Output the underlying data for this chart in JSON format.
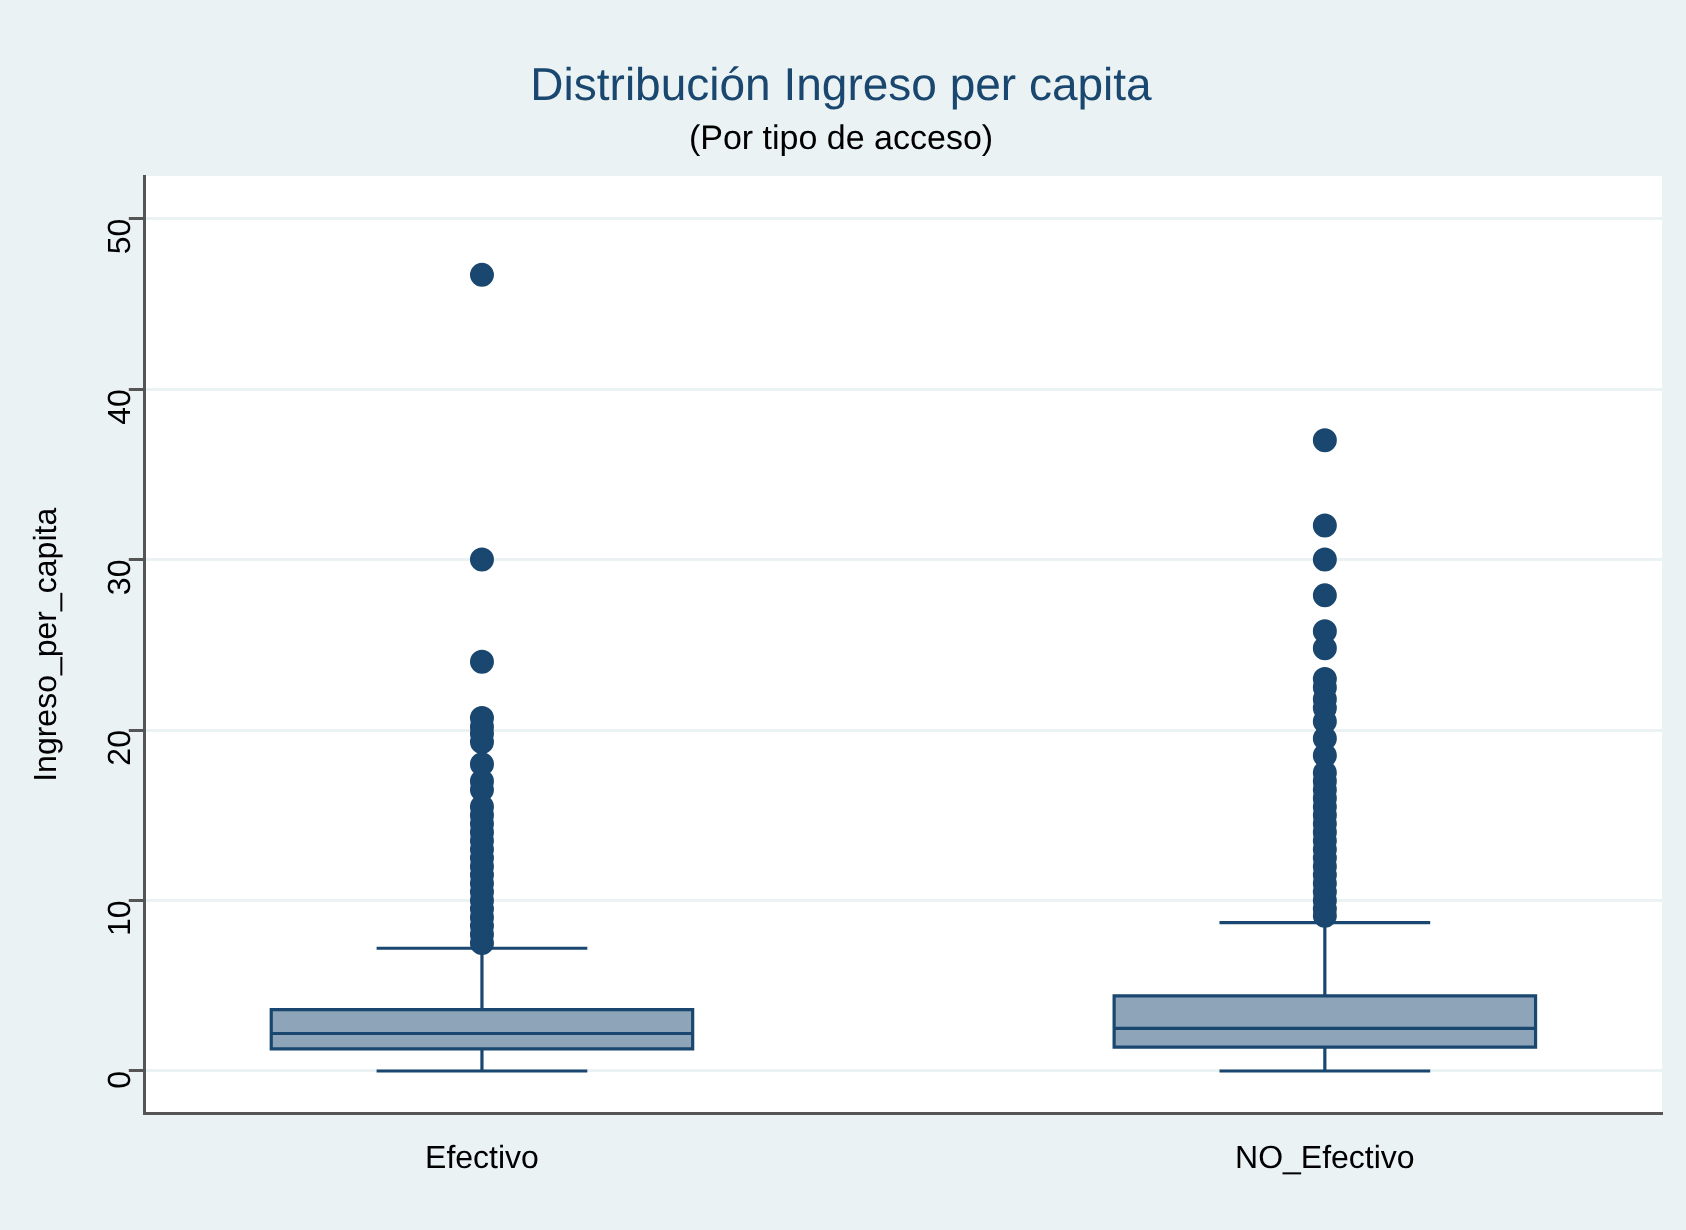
{
  "chart_data": {
    "type": "box",
    "title": "Distribución Ingreso per capita",
    "subtitle": "(Por tipo de acceso)",
    "ylabel": "Ingreso_per_capita",
    "categories": [
      "Efectivo",
      "NO_Efectivo"
    ],
    "ylim": [
      -2.5,
      52.5
    ],
    "yticks": [
      0,
      10,
      20,
      30,
      40,
      50
    ],
    "grid": "y",
    "color": "#1a476f",
    "boxes": [
      {
        "low": 0,
        "q1": 1.3,
        "median": 2.2,
        "q3": 3.6,
        "high": 7.2,
        "outliers": [
          46.7,
          30,
          24,
          20.7,
          20.2,
          19.8,
          19.3,
          18,
          17,
          16.5,
          15.5,
          15,
          14.5,
          14,
          13.5,
          13,
          12.5,
          12,
          11.5,
          11,
          10.5,
          10,
          9.5,
          9,
          8.5,
          8,
          7.5
        ]
      },
      {
        "low": 0,
        "q1": 1.4,
        "median": 2.5,
        "q3": 4.4,
        "high": 8.7,
        "outliers": [
          37,
          32,
          30,
          27.9,
          25.8,
          24.8,
          23,
          22.5,
          21.8,
          21.3,
          20.5,
          19.5,
          18.5,
          17.5,
          17,
          16.5,
          16,
          15.5,
          15,
          14.5,
          14,
          13.5,
          13,
          12.5,
          12,
          11.5,
          11,
          10.5,
          10,
          9.5,
          9.1
        ]
      }
    ]
  }
}
